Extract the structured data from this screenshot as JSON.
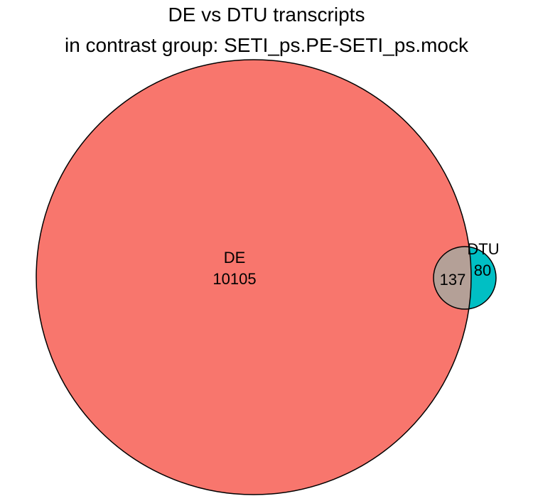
{
  "title": {
    "line1": "DE vs DTU transcripts",
    "line2": "in contrast group: SETI_ps.PE-SETI_ps.mock"
  },
  "venn": {
    "sets": [
      {
        "name": "DE",
        "only_count": "10105",
        "color": "#F8766D"
      },
      {
        "name": "DTU",
        "only_count": "80",
        "color": "#00BFC4"
      }
    ],
    "intersection": {
      "count": "137",
      "color": "#B4A097"
    },
    "outline_color": "#000000"
  }
}
